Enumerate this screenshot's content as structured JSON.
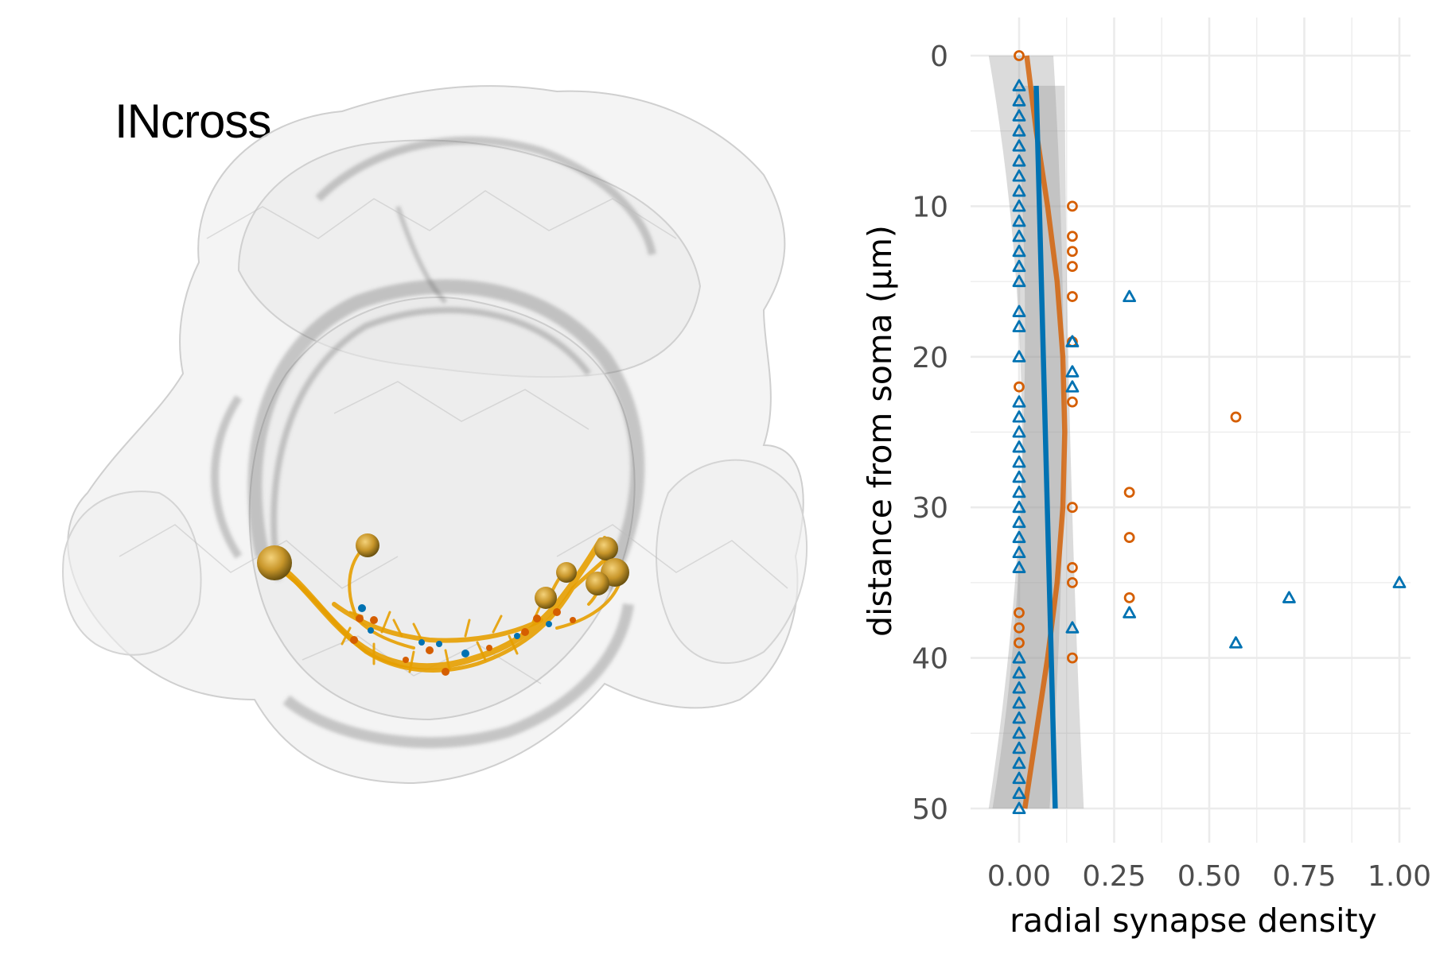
{
  "panel_title": "INcross",
  "colors": {
    "orange": "#d55e00",
    "blue": "#0072b2",
    "neuron": "#e69f00",
    "mesh": "#9a9a9a",
    "grid": "#ebebeb",
    "ribbon": "#bdbdbd"
  },
  "render": {
    "description_icon": "neuron-mesh-render",
    "soma_count": 7
  },
  "chart_data": {
    "type": "scatter",
    "xlabel": "radial synapse density",
    "ylabel": "distance from soma (µm)",
    "xlim": [
      -0.12,
      1.05
    ],
    "ylim": [
      52,
      -2.5
    ],
    "x_ticks": [
      0.0,
      0.25,
      0.5,
      0.75,
      1.0
    ],
    "x_tick_labels": [
      "0.00",
      "0.25",
      "0.50",
      "0.75",
      "1.00"
    ],
    "y_ticks": [
      0,
      10,
      20,
      30,
      40,
      50
    ],
    "y_tick_labels": [
      "0",
      "10",
      "20",
      "30",
      "40",
      "50"
    ],
    "grid": true,
    "legend": "none",
    "series": [
      {
        "marker": "circle",
        "color": "#d55e00",
        "points": [
          [
            0,
            0
          ],
          [
            0.14,
            10
          ],
          [
            0.14,
            12
          ],
          [
            0.14,
            13
          ],
          [
            0.14,
            14
          ],
          [
            0.14,
            16
          ],
          [
            0.14,
            19
          ],
          [
            0,
            22
          ],
          [
            0.14,
            23
          ],
          [
            0.57,
            24
          ],
          [
            0.29,
            29
          ],
          [
            0.14,
            30
          ],
          [
            0.29,
            32
          ],
          [
            0.14,
            34
          ],
          [
            0.14,
            35
          ],
          [
            0.29,
            36
          ],
          [
            0,
            37
          ],
          [
            0,
            38
          ],
          [
            0,
            39
          ],
          [
            0.14,
            40
          ]
        ],
        "fit": [
          [
            0.02,
            0
          ],
          [
            0.045,
            5
          ],
          [
            0.075,
            10
          ],
          [
            0.1,
            15
          ],
          [
            0.115,
            20
          ],
          [
            0.12,
            25
          ],
          [
            0.115,
            30
          ],
          [
            0.1,
            35
          ],
          [
            0.075,
            40
          ],
          [
            0.045,
            45
          ],
          [
            0.015,
            50
          ]
        ],
        "ribbon": {
          "y": [
            0,
            50
          ],
          "lo_at_0": -0.08,
          "hi_at_0": 0.09,
          "lo_at_50": -0.07,
          "hi_at_50": 0.08
        }
      },
      {
        "marker": "triangle",
        "color": "#0072b2",
        "points": [
          [
            0,
            2
          ],
          [
            0,
            3
          ],
          [
            0,
            4
          ],
          [
            0,
            5
          ],
          [
            0,
            6
          ],
          [
            0,
            7
          ],
          [
            0,
            8
          ],
          [
            0,
            9
          ],
          [
            0,
            10
          ],
          [
            0,
            11
          ],
          [
            0,
            12
          ],
          [
            0,
            13
          ],
          [
            0,
            14
          ],
          [
            0,
            15
          ],
          [
            0.29,
            16
          ],
          [
            0,
            17
          ],
          [
            0,
            18
          ],
          [
            0.14,
            19
          ],
          [
            0,
            20
          ],
          [
            0.14,
            21
          ],
          [
            0.14,
            22
          ],
          [
            0,
            23
          ],
          [
            0,
            24
          ],
          [
            0,
            25
          ],
          [
            0,
            26
          ],
          [
            0,
            27
          ],
          [
            0,
            28
          ],
          [
            0,
            29
          ],
          [
            0,
            30
          ],
          [
            0,
            31
          ],
          [
            0,
            32
          ],
          [
            0,
            33
          ],
          [
            0,
            34
          ],
          [
            1.0,
            35
          ],
          [
            0.71,
            36
          ],
          [
            0.29,
            37
          ],
          [
            0.14,
            38
          ],
          [
            0.57,
            39
          ],
          [
            0,
            40
          ],
          [
            0,
            41
          ],
          [
            0,
            42
          ],
          [
            0,
            43
          ],
          [
            0,
            44
          ],
          [
            0,
            45
          ],
          [
            0,
            46
          ],
          [
            0,
            47
          ],
          [
            0,
            48
          ],
          [
            0,
            49
          ],
          [
            0,
            50
          ]
        ],
        "fit": [
          [
            0.045,
            2
          ],
          [
            0.095,
            50
          ]
        ],
        "ribbon": {
          "y": [
            2,
            50
          ],
          "lo_at_0": -0.01,
          "hi_at_0": 0.12,
          "lo_at_50": -0.08,
          "hi_at_50": 0.17
        }
      }
    ]
  }
}
